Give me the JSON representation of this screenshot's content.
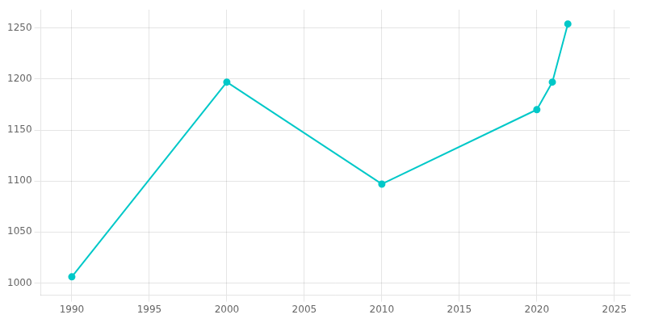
{
  "chart_data": {
    "type": "line",
    "x": [
      1990,
      2000,
      2010,
      2020,
      2021,
      2022
    ],
    "values": [
      1006,
      1197,
      1097,
      1170,
      1197,
      1254
    ],
    "color": "#00c8c8",
    "marker": "circle",
    "xlim": [
      1988,
      2026
    ],
    "ylim": [
      988,
      1268
    ],
    "xticks": [
      1990,
      1995,
      2000,
      2005,
      2010,
      2015,
      2020,
      2025
    ],
    "yticks": [
      1000,
      1050,
      1100,
      1150,
      1200,
      1250
    ],
    "grid": true
  }
}
